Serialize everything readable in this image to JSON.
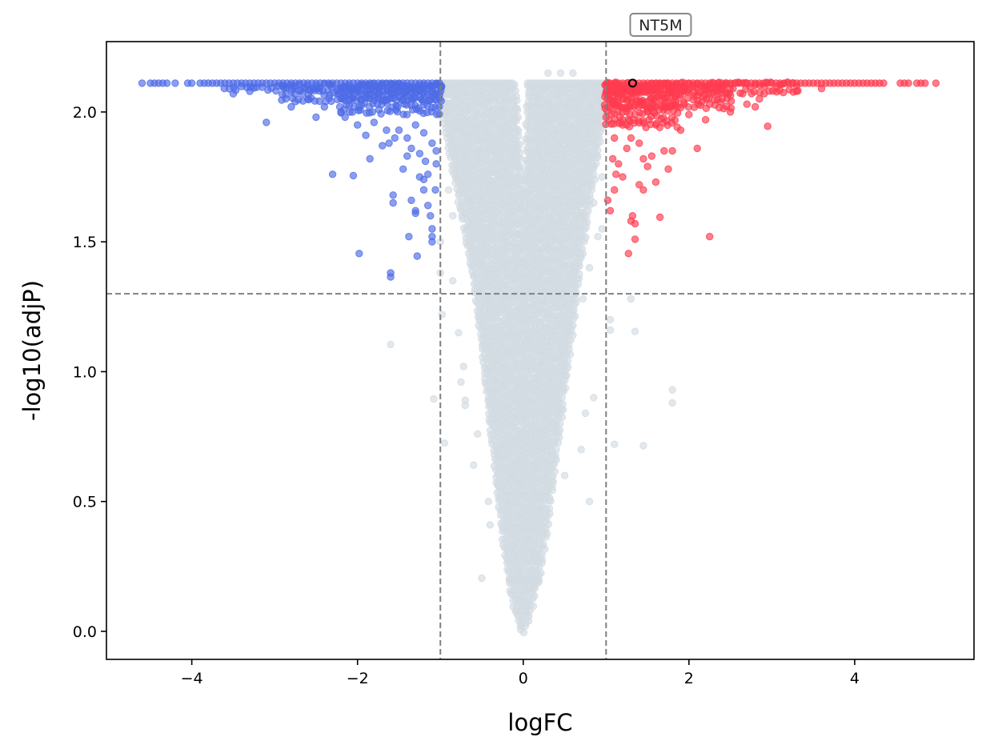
{
  "chart_data": {
    "type": "scatter",
    "title": "",
    "xlabel": "logFC",
    "ylabel": "-log10(adjP)",
    "xlim": [
      -5.03,
      5.44
    ],
    "ylim": [
      -0.108,
      2.271
    ],
    "xticks": [
      -4,
      -2,
      0,
      2,
      4
    ],
    "xtick_labels": [
      "−4",
      "−2",
      "0",
      "2",
      "4"
    ],
    "yticks": [
      0.0,
      0.5,
      1.0,
      1.5,
      2.0
    ],
    "ytick_labels": [
      "0.0",
      "0.5",
      "1.0",
      "1.5",
      "2.0"
    ],
    "grid": false,
    "thresholds": {
      "logFC": [
        -1,
        1
      ],
      "neg_log10_adjP": 1.3
    },
    "colors": {
      "down": "#4f6be6",
      "up": "#ff3b4f",
      "ns": "#d2dbe2",
      "threshold": "#808080"
    },
    "annotation": {
      "label": "NT5M",
      "x": 1.32,
      "y": 2.111
    },
    "series": [
      {
        "name": "down",
        "saturated_y": 2.111,
        "saturated_x": [
          -4.6,
          -4.5,
          -4.45,
          -4.4,
          -4.35,
          -4.3,
          -4.2,
          -4.05,
          -4.0,
          -3.9,
          -3.85,
          -3.8,
          -3.75,
          -3.7,
          -3.65,
          -3.6,
          -3.55,
          -3.5,
          -3.45,
          -3.4,
          -3.35,
          -3.3,
          -3.25,
          -3.2,
          -3.15,
          -3.1,
          -3.05,
          -3.0,
          -2.95,
          -2.9,
          -2.85,
          -2.8,
          -2.75,
          -2.7,
          -2.65,
          -2.6,
          -2.55,
          -2.5,
          -2.45,
          -2.4,
          -2.35,
          -2.3,
          -2.25,
          -2.2,
          -2.15,
          -2.1,
          -2.05,
          -2.0,
          -1.95,
          -1.9,
          -1.85,
          -1.8,
          -1.75,
          -1.7,
          -1.65,
          -1.6,
          -1.55,
          -1.5,
          -1.45,
          -1.4,
          -1.35,
          -1.3,
          -1.25,
          -1.2,
          -1.15,
          -1.1,
          -1.05,
          -1.01
        ],
        "band": [
          [
            2.0,
            -2.2,
            -1.0
          ],
          [
            2.05,
            -2.9,
            -1.0
          ],
          [
            2.09,
            -3.6,
            -1.0
          ]
        ],
        "points": [
          [
            -3.1,
            1.96
          ],
          [
            -2.8,
            2.02
          ],
          [
            -2.5,
            1.98
          ],
          [
            -2.3,
            1.76
          ],
          [
            -2.05,
            1.755
          ],
          [
            -1.98,
            1.455
          ],
          [
            -1.6,
            1.38
          ],
          [
            -1.6,
            1.365
          ],
          [
            -1.57,
            1.68
          ],
          [
            -1.57,
            1.65
          ],
          [
            -1.38,
            1.52
          ],
          [
            -1.28,
            1.445
          ],
          [
            -1.2,
            1.74
          ],
          [
            -1.1,
            1.52
          ],
          [
            -1.1,
            1.5
          ],
          [
            -1.12,
            1.6
          ],
          [
            -1.3,
            1.62
          ],
          [
            -1.3,
            1.61
          ],
          [
            -1.45,
            1.78
          ],
          [
            -1.85,
            1.82
          ],
          [
            -1.9,
            1.91
          ],
          [
            -1.7,
            1.87
          ],
          [
            -1.55,
            1.9
          ],
          [
            -1.5,
            1.93
          ],
          [
            -1.35,
            1.86
          ],
          [
            -1.25,
            1.84
          ],
          [
            -1.2,
            1.7
          ],
          [
            -1.15,
            1.76
          ],
          [
            -1.05,
            1.8
          ],
          [
            -1.1,
            1.55
          ],
          [
            -3.5,
            2.07
          ],
          [
            -3.3,
            2.08
          ],
          [
            -2.9,
            2.1
          ],
          [
            -2.6,
            2.05
          ],
          [
            -2.4,
            2.02
          ],
          [
            -2.2,
            2.0
          ],
          [
            -2.15,
            1.98
          ],
          [
            -2.0,
            1.95
          ],
          [
            -1.8,
            1.96
          ],
          [
            -1.65,
            1.93
          ],
          [
            -1.4,
            1.9
          ],
          [
            -1.3,
            1.95
          ],
          [
            -1.2,
            1.92
          ],
          [
            -1.1,
            1.88
          ],
          [
            -1.05,
            1.85
          ],
          [
            -1.35,
            1.66
          ],
          [
            -1.25,
            1.75
          ],
          [
            -1.15,
            1.64
          ],
          [
            -1.06,
            1.7
          ],
          [
            -1.4,
            1.83
          ],
          [
            -1.18,
            1.81
          ],
          [
            -1.62,
            1.88
          ]
        ]
      },
      {
        "name": "up",
        "saturated_y": 2.111,
        "saturated_x": [
          1.01,
          1.05,
          1.1,
          1.15,
          1.2,
          1.25,
          1.3,
          1.35,
          1.4,
          1.45,
          1.5,
          1.55,
          1.6,
          1.65,
          1.7,
          1.75,
          1.8,
          1.85,
          1.9,
          1.95,
          2.0,
          2.05,
          2.1,
          2.15,
          2.2,
          2.25,
          2.3,
          2.35,
          2.4,
          2.45,
          2.5,
          2.55,
          2.6,
          2.65,
          2.7,
          2.75,
          2.8,
          2.85,
          2.9,
          2.95,
          3.0,
          3.05,
          3.1,
          3.15,
          3.2,
          3.25,
          3.3,
          3.35,
          3.4,
          3.45,
          3.5,
          3.55,
          3.6,
          3.65,
          3.7,
          3.75,
          3.8,
          3.85,
          3.9,
          3.95,
          4.0,
          4.05,
          4.1,
          4.15,
          4.2,
          4.25,
          4.3,
          4.35,
          4.55,
          4.6,
          4.65,
          4.75,
          4.8,
          4.85,
          4.98
        ],
        "band": [
          [
            1.95,
            1.0,
            1.9
          ],
          [
            2.02,
            1.0,
            2.5
          ],
          [
            2.08,
            1.0,
            3.3
          ]
        ],
        "points": [
          [
            1.27,
            1.455
          ],
          [
            1.3,
            1.58
          ],
          [
            1.32,
            1.6
          ],
          [
            1.35,
            1.57
          ],
          [
            1.35,
            1.51
          ],
          [
            1.65,
            1.595
          ],
          [
            2.25,
            1.52
          ],
          [
            1.45,
            1.7
          ],
          [
            1.4,
            1.72
          ],
          [
            1.6,
            1.73
          ],
          [
            1.8,
            1.85
          ],
          [
            2.1,
            1.86
          ],
          [
            2.95,
            1.945
          ],
          [
            1.5,
            1.79
          ],
          [
            1.55,
            1.83
          ],
          [
            1.7,
            1.85
          ],
          [
            1.9,
            1.93
          ],
          [
            2.2,
            1.97
          ],
          [
            2.5,
            2.0
          ],
          [
            2.8,
            2.02
          ],
          [
            2.85,
            2.05
          ],
          [
            1.2,
            1.75
          ],
          [
            1.15,
            1.8
          ],
          [
            1.1,
            1.7
          ],
          [
            1.05,
            1.62
          ],
          [
            1.08,
            1.82
          ],
          [
            1.3,
            1.9
          ],
          [
            1.6,
            1.95
          ],
          [
            2.0,
            1.99
          ],
          [
            2.4,
            2.05
          ],
          [
            3.3,
            2.08
          ],
          [
            3.6,
            2.09
          ],
          [
            1.25,
            1.86
          ],
          [
            1.4,
            1.88
          ],
          [
            1.75,
            1.78
          ],
          [
            1.1,
            1.9
          ],
          [
            1.2,
            1.95
          ],
          [
            1.5,
            2.0
          ],
          [
            2.7,
            2.03
          ],
          [
            1.02,
            1.66
          ],
          [
            1.12,
            1.76
          ],
          [
            1.45,
            1.82
          ]
        ]
      },
      {
        "name": "ns",
        "envelope_cols": [
          "y",
          "xmin",
          "gap_left",
          "gap_right",
          "xmax"
        ],
        "envelope": [
          [
            0.0,
            -0.02,
            0,
            0,
            0.02
          ],
          [
            0.1,
            -0.12,
            0,
            0,
            0.12
          ],
          [
            0.2,
            -0.17,
            0,
            0,
            0.2
          ],
          [
            0.3,
            -0.22,
            0,
            0,
            0.25
          ],
          [
            0.4,
            -0.26,
            0,
            0,
            0.3
          ],
          [
            0.5,
            -0.3,
            0,
            0,
            0.34
          ],
          [
            0.6,
            -0.33,
            0,
            0,
            0.38
          ],
          [
            0.7,
            -0.36,
            0,
            0,
            0.42
          ],
          [
            0.8,
            -0.4,
            0,
            0,
            0.46
          ],
          [
            0.9,
            -0.43,
            0,
            0,
            0.5
          ],
          [
            1.0,
            -0.47,
            0,
            0,
            0.54
          ],
          [
            1.1,
            -0.5,
            0,
            0,
            0.58
          ],
          [
            1.2,
            -0.54,
            0,
            0,
            0.62
          ],
          [
            1.3,
            -0.58,
            0,
            0,
            0.66
          ],
          [
            1.4,
            -0.63,
            0,
            0,
            0.7
          ],
          [
            1.5,
            -0.68,
            0,
            0,
            0.74
          ],
          [
            1.6,
            -0.74,
            0,
            0,
            0.79
          ],
          [
            1.7,
            -0.8,
            0,
            0,
            0.84
          ],
          [
            1.8,
            -0.86,
            -0.02,
            0.02,
            0.89
          ],
          [
            1.9,
            -0.92,
            -0.04,
            0.03,
            0.94
          ],
          [
            2.0,
            -0.97,
            -0.06,
            0.04,
            0.98
          ],
          [
            2.111,
            -1.0,
            -0.1,
            0.05,
            1.0
          ]
        ],
        "points": [
          [
            -1.6,
            1.105
          ],
          [
            -1.08,
            0.895
          ],
          [
            -0.95,
            0.725
          ],
          [
            -0.7,
            0.89
          ],
          [
            -0.7,
            0.87
          ],
          [
            -0.75,
            0.96
          ],
          [
            -0.72,
            1.02
          ],
          [
            -0.5,
            0.205
          ],
          [
            -0.42,
            0.5
          ],
          [
            -0.4,
            0.41
          ],
          [
            -0.6,
            0.64
          ],
          [
            -0.55,
            0.76
          ],
          [
            1.05,
            1.16
          ],
          [
            1.05,
            1.2
          ],
          [
            1.1,
            0.72
          ],
          [
            1.35,
            1.155
          ],
          [
            1.45,
            0.715
          ],
          [
            1.3,
            1.28
          ],
          [
            1.8,
            0.93
          ],
          [
            1.8,
            0.88
          ],
          [
            0.75,
            0.84
          ],
          [
            0.85,
            0.9
          ],
          [
            0.7,
            0.7
          ],
          [
            0.8,
            0.5
          ],
          [
            0.5,
            0.6
          ],
          [
            -1.0,
            1.38
          ],
          [
            -0.98,
            1.22
          ],
          [
            0.3,
            2.15
          ],
          [
            0.45,
            2.15
          ],
          [
            -1.0,
            1.5
          ],
          [
            0.9,
            1.52
          ],
          [
            0.95,
            1.55
          ],
          [
            -0.85,
            1.6
          ],
          [
            0.85,
            1.65
          ],
          [
            -0.9,
            1.7
          ],
          [
            0.95,
            1.75
          ],
          [
            0.6,
            2.15
          ],
          [
            -0.78,
            1.15
          ],
          [
            0.72,
            1.28
          ],
          [
            -0.85,
            1.35
          ],
          [
            0.8,
            1.4
          ]
        ]
      }
    ]
  }
}
